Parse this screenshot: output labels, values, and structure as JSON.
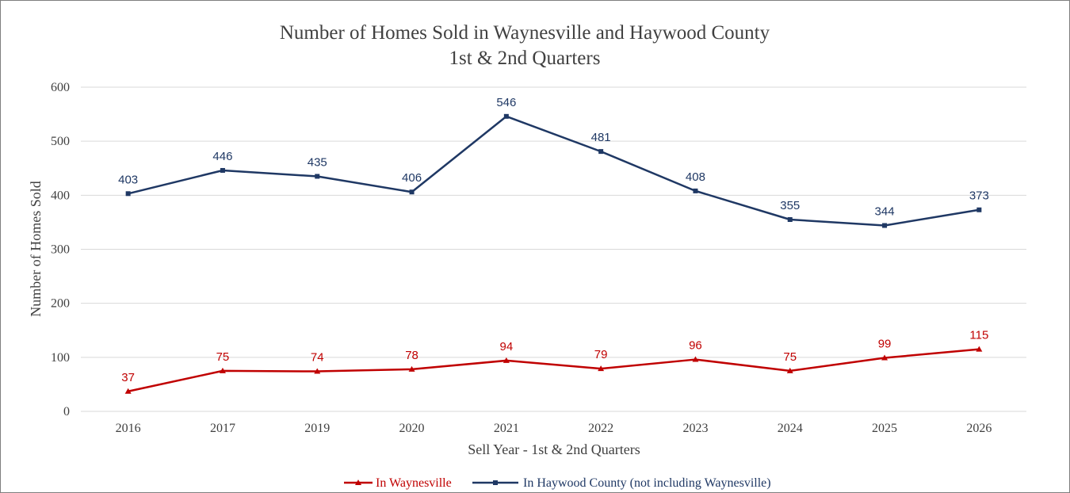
{
  "chart_data": {
    "type": "line",
    "title": "Number of Homes Sold in Waynesville and Haywood County",
    "subtitle": "1st & 2nd Quarters",
    "xlabel": "Sell Year - 1st & 2nd Quarters",
    "ylabel": "Number of Homes Sold",
    "ylim": [
      0,
      600
    ],
    "yticks": [
      0,
      100,
      200,
      300,
      400,
      500,
      600
    ],
    "grid": true,
    "legend_position": "bottom",
    "categories": [
      "2016",
      "2017",
      "2019",
      "2020",
      "2021",
      "2022",
      "2023",
      "2024",
      "2025",
      "2026"
    ],
    "series": [
      {
        "name": "In Waynesville",
        "color": "#c00000",
        "marker": "triangle",
        "values": [
          37,
          75,
          74,
          78,
          94,
          79,
          96,
          75,
          99,
          115
        ]
      },
      {
        "name": "In Haywood County (not including Waynesville)",
        "color": "#1f3864",
        "marker": "square",
        "values": [
          403,
          446,
          435,
          406,
          546,
          481,
          408,
          355,
          344,
          373
        ]
      }
    ]
  }
}
